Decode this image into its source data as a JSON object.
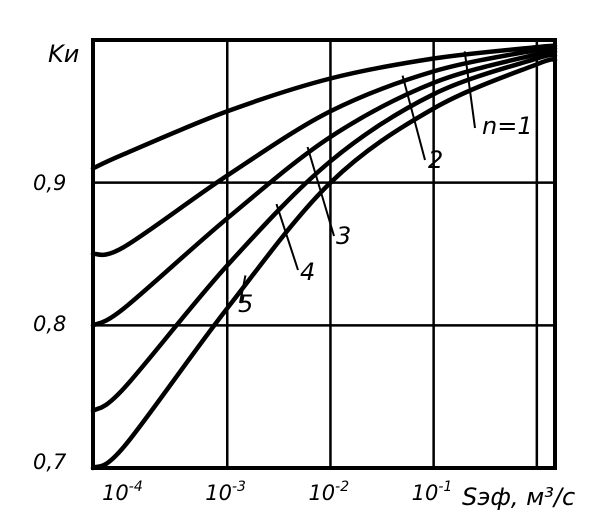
{
  "chart_data": {
    "type": "line",
    "title": "",
    "ylabel": "Kи",
    "xlabel": "Sэф, м³/с",
    "x_scale": "log",
    "xlim": [
      5e-05,
      1.5
    ],
    "ylim": [
      0.7,
      1.0
    ],
    "grid": true,
    "x_ticks": [
      {
        "value": 0.0001,
        "base": "10",
        "exp": "-4"
      },
      {
        "value": 0.001,
        "base": "10",
        "exp": "-3"
      },
      {
        "value": 0.01,
        "base": "10",
        "exp": "-2"
      },
      {
        "value": 0.1,
        "base": "10",
        "exp": "-1"
      }
    ],
    "y_ticks": [
      {
        "value": 0.9,
        "label": "0,9"
      },
      {
        "value": 0.8,
        "label": "0,8"
      },
      {
        "value": 0.7,
        "label": "0,7"
      }
    ],
    "series": [
      {
        "name": "n=1",
        "x": [
          5e-05,
          0.0001,
          0.001,
          0.01,
          0.1,
          1,
          1.5
        ],
        "y": [
          0.91,
          0.92,
          0.95,
          0.973,
          0.987,
          0.995,
          0.996
        ]
      },
      {
        "name": "2",
        "x": [
          5e-05,
          0.0001,
          0.001,
          0.01,
          0.1,
          1,
          1.5
        ],
        "y": [
          0.85,
          0.855,
          0.905,
          0.95,
          0.978,
          0.993,
          0.994
        ]
      },
      {
        "name": "3",
        "x": [
          5e-05,
          0.0001,
          0.001,
          0.01,
          0.1,
          1,
          1.5
        ],
        "y": [
          0.8,
          0.812,
          0.875,
          0.932,
          0.97,
          0.99,
          0.992
        ]
      },
      {
        "name": "4",
        "x": [
          5e-05,
          0.0001,
          0.001,
          0.01,
          0.1,
          1,
          1.5
        ],
        "y": [
          0.74,
          0.756,
          0.842,
          0.915,
          0.962,
          0.987,
          0.989
        ]
      },
      {
        "name": "5",
        "x": [
          5e-05,
          0.0001,
          0.001,
          0.01,
          0.1,
          1,
          1.5
        ],
        "y": [
          0.7,
          0.715,
          0.812,
          0.9,
          0.952,
          0.983,
          0.986
        ]
      }
    ]
  }
}
